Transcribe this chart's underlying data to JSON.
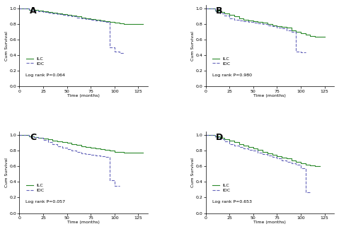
{
  "panels": [
    "A",
    "B",
    "C",
    "D"
  ],
  "log_rank_p": [
    "P=0.064",
    "P=0.980",
    "P=0.057",
    "P=0.653"
  ],
  "ilc_color": "#2e8b2e",
  "idc_color": "#6666bb",
  "ylabel": "Cum Survival",
  "xlabel": "Time (months)",
  "xlim": [
    0,
    135
  ],
  "ylim": [
    0.0,
    1.05
  ],
  "yticks": [
    0.0,
    0.2,
    0.4,
    0.6,
    0.8,
    1.0
  ],
  "xticks": [
    0,
    25,
    50,
    75,
    100,
    125
  ],
  "legend_labels": [
    "ILC",
    "IDC"
  ],
  "panel_A": {
    "ilc_x": [
      0,
      5,
      10,
      15,
      20,
      25,
      30,
      35,
      40,
      45,
      50,
      55,
      60,
      65,
      70,
      75,
      80,
      85,
      90,
      95,
      100,
      105,
      110,
      115,
      120,
      125,
      130
    ],
    "ilc_y": [
      1.0,
      1.0,
      0.99,
      0.99,
      0.98,
      0.97,
      0.96,
      0.95,
      0.94,
      0.93,
      0.92,
      0.91,
      0.9,
      0.89,
      0.88,
      0.87,
      0.86,
      0.85,
      0.84,
      0.83,
      0.82,
      0.81,
      0.8,
      0.8,
      0.8,
      0.8,
      0.8
    ],
    "idc_x": [
      0,
      5,
      10,
      15,
      20,
      25,
      30,
      35,
      40,
      45,
      50,
      55,
      60,
      65,
      70,
      75,
      80,
      85,
      90,
      95,
      100,
      105,
      110
    ],
    "idc_y": [
      1.0,
      1.0,
      0.99,
      0.98,
      0.97,
      0.96,
      0.95,
      0.94,
      0.93,
      0.92,
      0.91,
      0.9,
      0.89,
      0.88,
      0.87,
      0.86,
      0.85,
      0.84,
      0.83,
      0.5,
      0.45,
      0.43,
      0.43
    ]
  },
  "panel_B": {
    "ilc_x": [
      0,
      5,
      10,
      15,
      20,
      25,
      30,
      35,
      40,
      45,
      50,
      55,
      60,
      65,
      70,
      75,
      80,
      85,
      90,
      95,
      100,
      105,
      110,
      115,
      120,
      125
    ],
    "ilc_y": [
      1.0,
      1.0,
      0.98,
      0.96,
      0.94,
      0.92,
      0.9,
      0.88,
      0.86,
      0.85,
      0.84,
      0.83,
      0.82,
      0.8,
      0.79,
      0.78,
      0.77,
      0.76,
      0.72,
      0.7,
      0.69,
      0.67,
      0.65,
      0.64,
      0.64,
      0.64
    ],
    "idc_x": [
      0,
      5,
      10,
      15,
      20,
      25,
      30,
      35,
      40,
      45,
      50,
      55,
      60,
      65,
      70,
      75,
      80,
      85,
      90,
      95,
      100,
      105
    ],
    "idc_y": [
      1.0,
      1.0,
      0.97,
      0.94,
      0.91,
      0.88,
      0.86,
      0.85,
      0.84,
      0.83,
      0.82,
      0.81,
      0.8,
      0.79,
      0.78,
      0.76,
      0.75,
      0.72,
      0.7,
      0.45,
      0.44,
      0.44
    ]
  },
  "panel_C": {
    "ilc_x": [
      0,
      5,
      10,
      15,
      20,
      25,
      30,
      35,
      40,
      45,
      50,
      55,
      60,
      65,
      70,
      75,
      80,
      85,
      90,
      95,
      100,
      105,
      110,
      115,
      120,
      125,
      130
    ],
    "ilc_y": [
      1.0,
      1.0,
      0.99,
      0.98,
      0.97,
      0.96,
      0.95,
      0.93,
      0.92,
      0.91,
      0.9,
      0.89,
      0.88,
      0.86,
      0.85,
      0.84,
      0.83,
      0.82,
      0.81,
      0.8,
      0.79,
      0.79,
      0.78,
      0.78,
      0.78,
      0.78,
      0.78
    ],
    "idc_x": [
      0,
      5,
      10,
      15,
      20,
      25,
      30,
      35,
      40,
      45,
      50,
      55,
      60,
      65,
      70,
      75,
      80,
      85,
      90,
      95,
      100,
      105
    ],
    "idc_y": [
      1.0,
      1.0,
      0.99,
      0.98,
      0.97,
      0.94,
      0.91,
      0.89,
      0.86,
      0.84,
      0.82,
      0.8,
      0.79,
      0.77,
      0.76,
      0.75,
      0.74,
      0.73,
      0.72,
      0.42,
      0.35,
      0.35
    ]
  },
  "panel_D": {
    "ilc_x": [
      0,
      5,
      10,
      15,
      20,
      25,
      30,
      35,
      40,
      45,
      50,
      55,
      60,
      65,
      70,
      75,
      80,
      85,
      90,
      95,
      100,
      105,
      110,
      115,
      120
    ],
    "ilc_y": [
      1.0,
      1.0,
      0.99,
      0.97,
      0.95,
      0.93,
      0.91,
      0.89,
      0.87,
      0.85,
      0.83,
      0.81,
      0.79,
      0.77,
      0.75,
      0.73,
      0.71,
      0.7,
      0.68,
      0.66,
      0.64,
      0.62,
      0.61,
      0.6,
      0.6
    ],
    "idc_x": [
      0,
      5,
      10,
      15,
      20,
      25,
      30,
      35,
      40,
      45,
      50,
      55,
      60,
      65,
      70,
      75,
      80,
      85,
      90,
      95,
      100,
      105,
      110
    ],
    "idc_y": [
      1.0,
      1.0,
      0.98,
      0.95,
      0.92,
      0.89,
      0.87,
      0.85,
      0.83,
      0.81,
      0.8,
      0.78,
      0.76,
      0.74,
      0.72,
      0.7,
      0.68,
      0.66,
      0.64,
      0.62,
      0.58,
      0.27,
      0.27
    ]
  }
}
